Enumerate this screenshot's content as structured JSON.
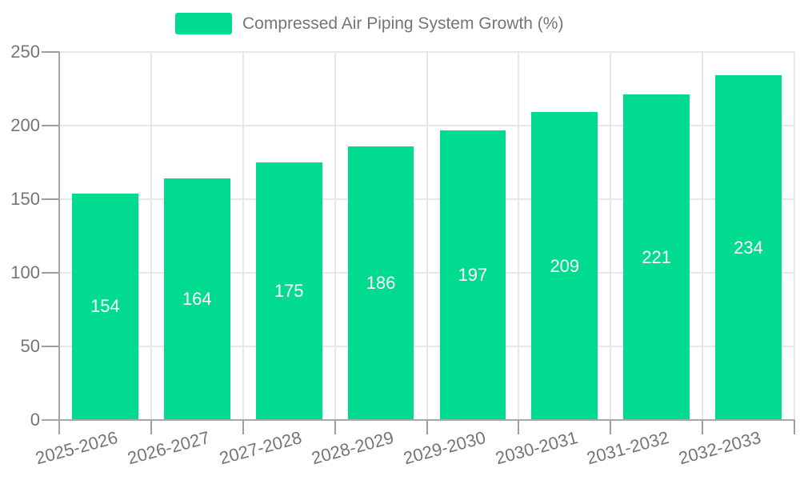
{
  "chart_data": {
    "type": "bar",
    "legend": "Compressed Air Piping System Growth (%)",
    "categories": [
      "2025-2026",
      "2026-2027",
      "2027-2028",
      "2028-2029",
      "2029-2030",
      "2030-2031",
      "2031-2032",
      "2032-2033"
    ],
    "values": [
      154,
      164,
      175,
      186,
      197,
      209,
      221,
      234
    ],
    "yticks": [
      0,
      50,
      100,
      150,
      200,
      250
    ],
    "ylim": [
      0,
      250
    ],
    "grid": true,
    "legend_position": "top-center",
    "bar_color": "#00DB8F",
    "value_label_color": "#ffffff",
    "axis_text_color": "#757575",
    "axis_line_color": "#a6a6a6",
    "tick_color": "#9e9e9e",
    "grid_color": "#e7e7e7",
    "background_color": "#ffffff"
  }
}
